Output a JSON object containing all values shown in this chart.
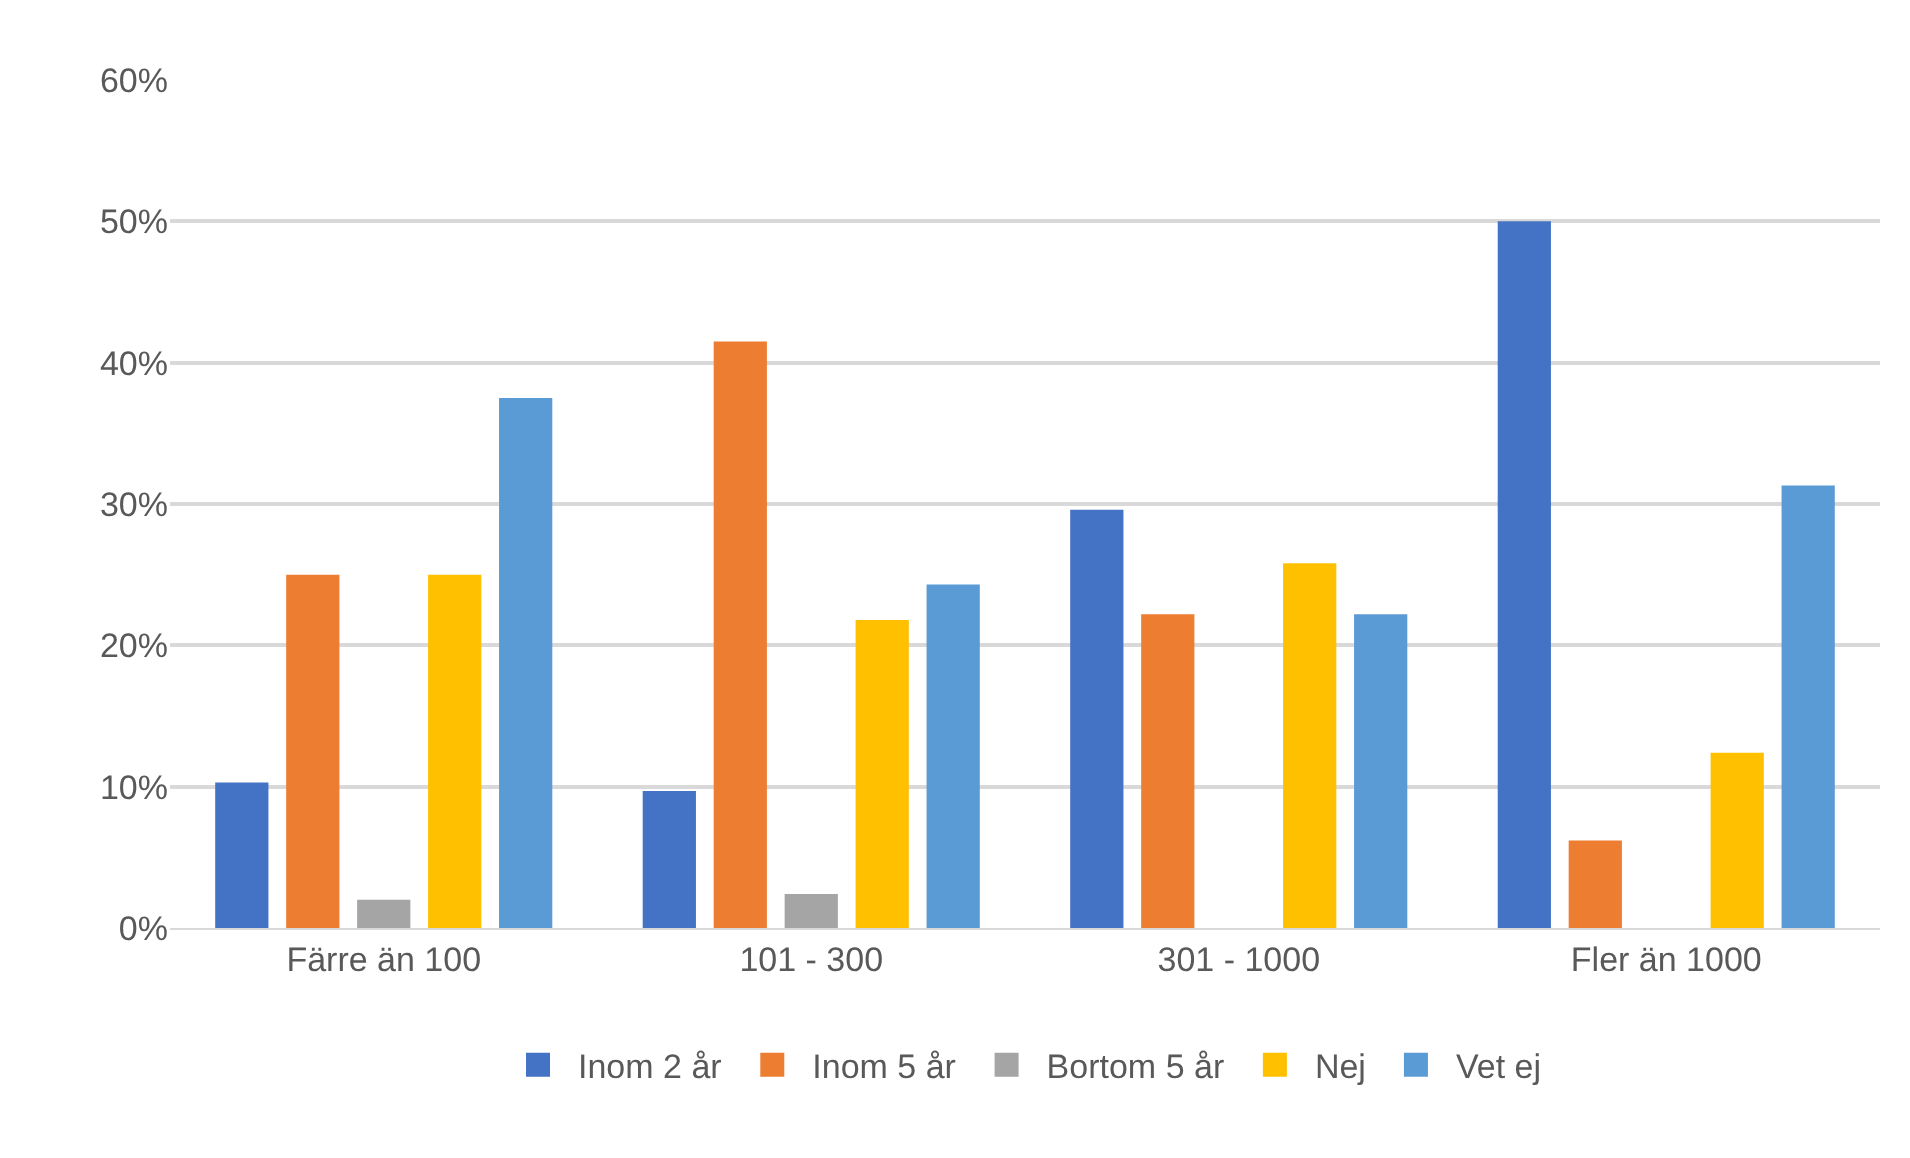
{
  "chart_data": {
    "type": "bar",
    "categories": [
      "Färre än 100",
      "101 - 300",
      "301 - 1000",
      "Fler än 1000"
    ],
    "series": [
      {
        "name": "Inom 2 år",
        "color": "#4472c4",
        "values": [
          10.3,
          9.7,
          29.6,
          50
        ]
      },
      {
        "name": "Inom 5 år",
        "color": "#ed7d31",
        "values": [
          25,
          41.5,
          22.2,
          6.2
        ]
      },
      {
        "name": "Bortom 5 år",
        "color": "#a5a5a5",
        "values": [
          2,
          2.4,
          0,
          0
        ]
      },
      {
        "name": "Nej",
        "color": "#ffc000",
        "values": [
          25,
          21.8,
          25.8,
          12.4
        ]
      },
      {
        "name": "Vet ej",
        "color": "#5b9bd5",
        "values": [
          37.5,
          24.3,
          22.2,
          31.3
        ]
      }
    ],
    "ylim": [
      0,
      60
    ],
    "yticks": [
      {
        "value": 0,
        "label": "0%"
      },
      {
        "value": 10,
        "label": "10%"
      },
      {
        "value": 20,
        "label": "20%"
      },
      {
        "value": 30,
        "label": "30%"
      },
      {
        "value": 40,
        "label": "40%"
      },
      {
        "value": 50,
        "label": "50%"
      },
      {
        "value": 60,
        "label": "60%"
      }
    ],
    "grid": "y",
    "legend": "bottom"
  }
}
